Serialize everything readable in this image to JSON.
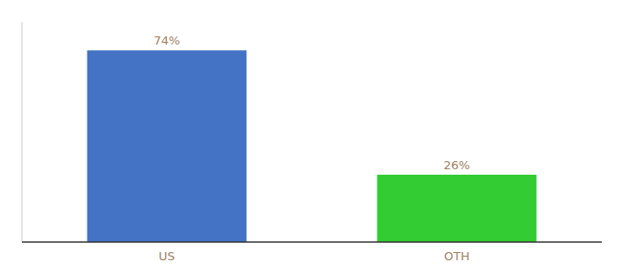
{
  "chart_data": {
    "type": "bar",
    "categories": [
      "US",
      "OTH"
    ],
    "values": [
      74,
      26
    ],
    "value_labels": [
      "74%",
      "26%"
    ],
    "colors": [
      "#4472c4",
      "#33cc33"
    ],
    "ylim": [
      0,
      85
    ],
    "data_labels": true,
    "tick_labels": "x"
  }
}
